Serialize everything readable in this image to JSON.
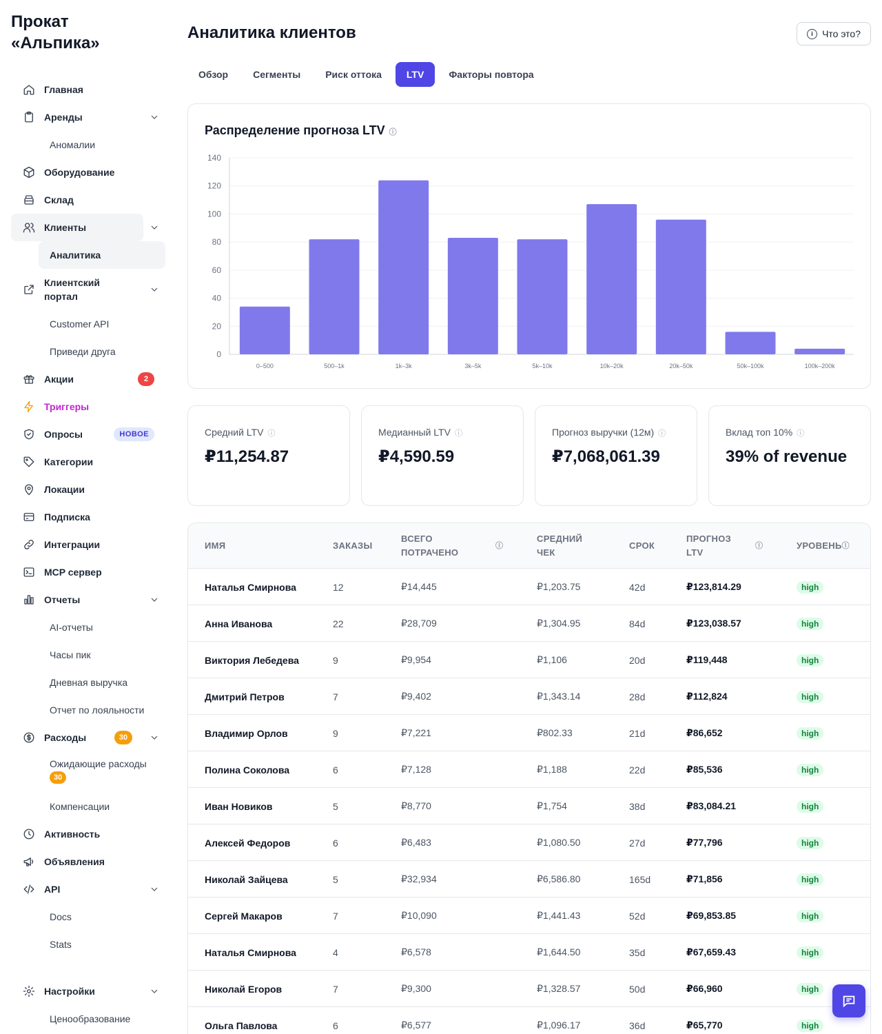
{
  "brand": {
    "line1": "Прокат",
    "line2": "«Альпика»"
  },
  "sidebar": {
    "items": [
      {
        "label": "Главная",
        "icon": "home-icon"
      },
      {
        "label": "Аренды",
        "icon": "clipboard-icon"
      },
      {
        "label": "Аномалии"
      },
      {
        "label": "Оборудование",
        "icon": "box-icon"
      },
      {
        "label": "Склад",
        "icon": "warehouse-icon"
      },
      {
        "label": "Клиенты",
        "icon": "users-icon"
      },
      {
        "label": "Аналитика"
      },
      {
        "label": "Клиентский портал",
        "icon": "external-link-icon"
      },
      {
        "label": "Customer API"
      },
      {
        "label": "Приведи друга"
      },
      {
        "label": "Акции",
        "icon": "gift-icon",
        "badge": "2"
      },
      {
        "label": "Триггеры",
        "icon": "bolt-icon"
      },
      {
        "label": "Опросы",
        "icon": "shield-icon",
        "badge": "НОВОЕ"
      },
      {
        "label": "Категории",
        "icon": "tag-icon"
      },
      {
        "label": "Локации",
        "icon": "map-pin-icon"
      },
      {
        "label": "Подписка",
        "icon": "credit-card-icon"
      },
      {
        "label": "Интеграции",
        "icon": "link-icon"
      },
      {
        "label": "MCP сервер",
        "icon": "terminal-icon"
      },
      {
        "label": "Отчеты",
        "icon": "bar-chart-icon"
      },
      {
        "label": "AI-отчеты"
      },
      {
        "label": "Часы пик"
      },
      {
        "label": "Дневная выручка"
      },
      {
        "label": "Отчет по лояльности"
      },
      {
        "label": "Расходы",
        "icon": "dollar-icon",
        "badge": "30"
      },
      {
        "label": "Ожидающие расходы",
        "badge": "30"
      },
      {
        "label": "Компенсации"
      },
      {
        "label": "Активность",
        "icon": "clock-icon"
      },
      {
        "label": "Объявления",
        "icon": "megaphone-icon"
      },
      {
        "label": "API",
        "icon": "code-icon"
      },
      {
        "label": "Docs"
      },
      {
        "label": "Stats"
      },
      {
        "label": "Настройки",
        "icon": "gear-icon"
      },
      {
        "label": "Ценообразование"
      }
    ]
  },
  "header": {
    "title": "Аналитика клиентов",
    "help_label": "Что это?"
  },
  "tabs": [
    {
      "label": "Обзор"
    },
    {
      "label": "Сегменты"
    },
    {
      "label": "Риск оттока"
    },
    {
      "label": "LTV"
    },
    {
      "label": "Факторы повтора"
    }
  ],
  "colors": {
    "accent": "#4f46e5",
    "bar": "#8079ec",
    "high_badge_bg": "#dcfce7",
    "high_badge_text": "#15803d",
    "trigger_text": "#c026d3"
  },
  "chart_data": {
    "type": "bar",
    "title": "Распределение прогноза LTV",
    "categories": [
      "0–500",
      "500–1k",
      "1k–3k",
      "3k–5k",
      "5k–10k",
      "10k–20k",
      "20k–50k",
      "50k–100k",
      "100k–200k"
    ],
    "values": [
      34,
      82,
      124,
      83,
      82,
      107,
      96,
      16,
      4
    ],
    "ylim": [
      0,
      140
    ],
    "yticks": [
      0,
      20,
      40,
      60,
      80,
      100,
      120,
      140
    ],
    "xlabel": "",
    "ylabel": "",
    "grid": true
  },
  "kpis": [
    {
      "label": "Средний LTV",
      "value": "₽11,254.87"
    },
    {
      "label": "Медианный LTV",
      "value": "₽4,590.59"
    },
    {
      "label": "Прогноз выручки (12м)",
      "value": "₽7,068,061.39"
    },
    {
      "label": "Вклад топ 10%",
      "value": "39% of revenue"
    }
  ],
  "table": {
    "headers": [
      "ИМЯ",
      "ЗАКАЗЫ",
      "ВСЕГО ПОТРАЧЕНО",
      "СРЕДНИЙ ЧЕК",
      "СРОК",
      "ПРОГНОЗ LTV",
      "УРОВЕНЬ"
    ],
    "rows": [
      [
        "Наталья Смирнова",
        "12",
        "₽14,445",
        "₽1,203.75",
        "42d",
        "₽123,814.29",
        "high"
      ],
      [
        "Анна Иванова",
        "22",
        "₽28,709",
        "₽1,304.95",
        "84d",
        "₽123,038.57",
        "high"
      ],
      [
        "Виктория Лебедева",
        "9",
        "₽9,954",
        "₽1,106",
        "20d",
        "₽119,448",
        "high"
      ],
      [
        "Дмитрий Петров",
        "7",
        "₽9,402",
        "₽1,343.14",
        "28d",
        "₽112,824",
        "high"
      ],
      [
        "Владимир Орлов",
        "9",
        "₽7,221",
        "₽802.33",
        "21d",
        "₽86,652",
        "high"
      ],
      [
        "Полина Соколова",
        "6",
        "₽7,128",
        "₽1,188",
        "22d",
        "₽85,536",
        "high"
      ],
      [
        "Иван Новиков",
        "5",
        "₽8,770",
        "₽1,754",
        "38d",
        "₽83,084.21",
        "high"
      ],
      [
        "Алексей Федоров",
        "6",
        "₽6,483",
        "₽1,080.50",
        "27d",
        "₽77,796",
        "high"
      ],
      [
        "Николай Зайцева",
        "5",
        "₽32,934",
        "₽6,586.80",
        "165d",
        "₽71,856",
        "high"
      ],
      [
        "Сергей Макаров",
        "7",
        "₽10,090",
        "₽1,441.43",
        "52d",
        "₽69,853.85",
        "high"
      ],
      [
        "Наталья Смирнова",
        "4",
        "₽6,578",
        "₽1,644.50",
        "35d",
        "₽67,659.43",
        "high"
      ],
      [
        "Николай Егоров",
        "7",
        "₽9,300",
        "₽1,328.57",
        "50d",
        "₽66,960",
        "high"
      ],
      [
        "Ольга Павлова",
        "6",
        "₽6,577",
        "₽1,096.17",
        "36d",
        "₽65,770",
        "high"
      ]
    ]
  }
}
